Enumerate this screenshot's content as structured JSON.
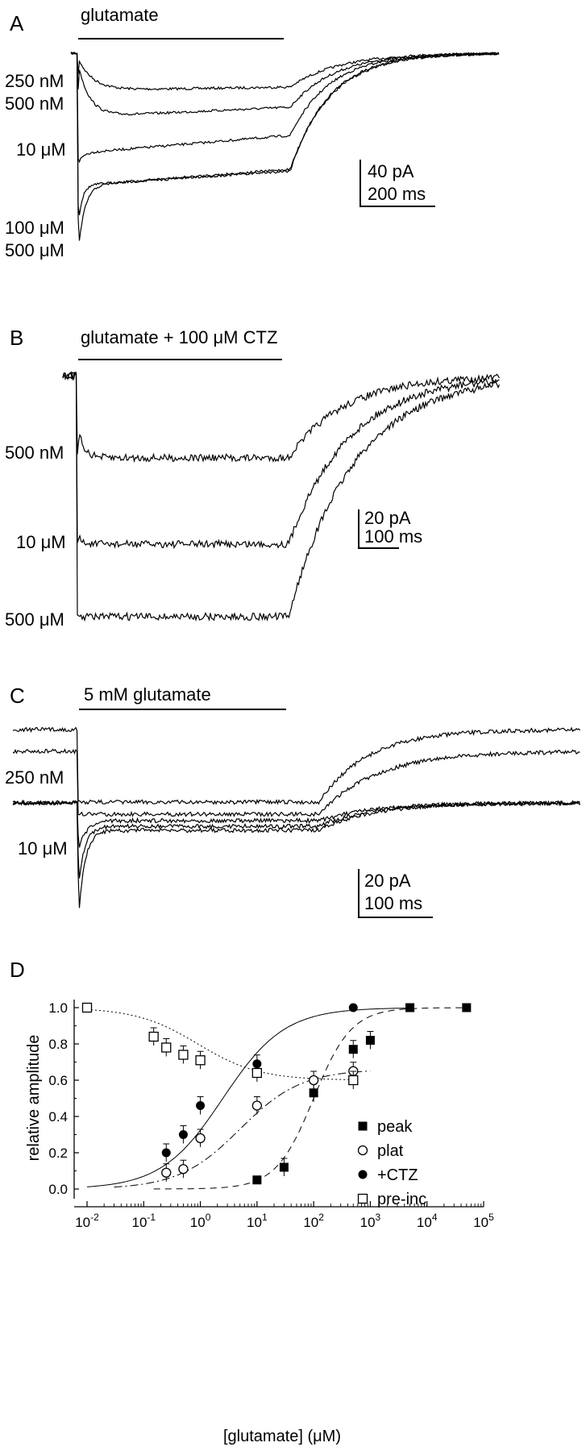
{
  "chart_data": [
    {
      "type": "line",
      "panel": "A",
      "bar_label": "glutamate",
      "concentrations": [
        "250 nM",
        "500 nM",
        "10 μM",
        "100 μM",
        "500 μM"
      ],
      "scale_bar": {
        "current": "40 pA",
        "time": "200 ms"
      }
    },
    {
      "type": "line",
      "panel": "B",
      "bar_label": "glutamate + 100 μM CTZ",
      "concentrations": [
        "500 nM",
        "10 μM",
        "500 μM"
      ],
      "scale_bar": {
        "current": "20 pA",
        "time": "100 ms"
      }
    },
    {
      "type": "line",
      "panel": "C",
      "bar_label": "5 mM glutamate",
      "concentrations": [
        "250 nM",
        "10 μM"
      ],
      "scale_bar": {
        "current": "20 pA",
        "time": "100 ms"
      }
    },
    {
      "type": "scatter",
      "panel": "D",
      "xlabel": "[glutamate] (μM)",
      "ylabel": "relative amplitude",
      "xscale": "log",
      "xlim": [
        0.01,
        100000
      ],
      "ylim": [
        0,
        1.0
      ],
      "yticks": [
        "0.0",
        "0.2",
        "0.4",
        "0.6",
        "0.8",
        "1.0"
      ],
      "xticks": [
        "10-2",
        "10-1",
        "100",
        "101",
        "102",
        "103",
        "104",
        "105"
      ],
      "legend_position": "bottom-right",
      "series": [
        {
          "name": "peak",
          "marker": "filled-square",
          "x": [
            10,
            30,
            100,
            500,
            1000,
            5000,
            50000
          ],
          "y": [
            0.05,
            0.12,
            0.53,
            0.77,
            0.82,
            1.0,
            1.0
          ]
        },
        {
          "name": "plat",
          "marker": "open-circle",
          "x": [
            0.25,
            0.5,
            1,
            10,
            100,
            500
          ],
          "y": [
            0.09,
            0.11,
            0.28,
            0.46,
            0.6,
            0.65
          ]
        },
        {
          "name": "+CTZ",
          "marker": "filled-circle",
          "x": [
            0.25,
            0.5,
            1,
            10,
            500
          ],
          "y": [
            0.2,
            0.3,
            0.46,
            0.69,
            1.0
          ]
        },
        {
          "name": "pre-inc",
          "marker": "open-square",
          "x": [
            0.01,
            0.15,
            0.25,
            0.5,
            1,
            10,
            500
          ],
          "y": [
            1.0,
            0.84,
            0.78,
            0.74,
            0.71,
            0.64,
            0.6
          ]
        }
      ],
      "fit_curves": [
        {
          "series": "+CTZ",
          "style": "solid",
          "ec50": 2.5,
          "hill": 0.8,
          "max": 1.0
        },
        {
          "series": "plat",
          "style": "dash-dot",
          "ec50": 5,
          "hill": 0.8,
          "max": 0.66
        },
        {
          "series": "peak",
          "style": "dashed",
          "ec50": 100,
          "hill": 1.3,
          "max": 1.0
        },
        {
          "series": "pre-inc",
          "style": "dotted",
          "ic50": 0.9,
          "hill": 0.8,
          "min": 0.6
        }
      ]
    }
  ]
}
